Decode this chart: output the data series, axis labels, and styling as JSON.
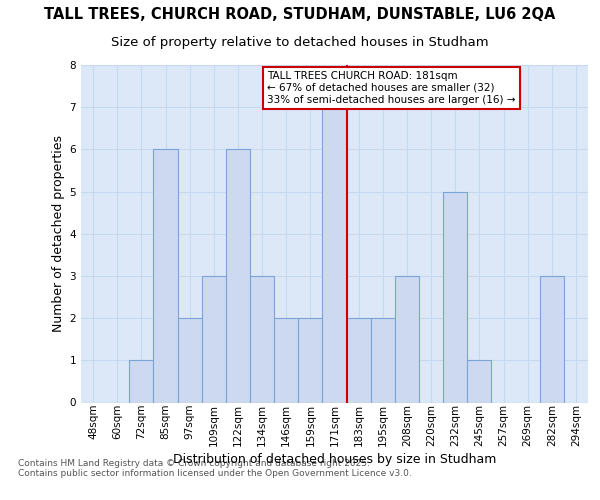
{
  "title_line1": "TALL TREES, CHURCH ROAD, STUDHAM, DUNSTABLE, LU6 2QA",
  "title_line2": "Size of property relative to detached houses in Studham",
  "xlabel": "Distribution of detached houses by size in Studham",
  "ylabel": "Number of detached properties",
  "categories": [
    "48sqm",
    "60sqm",
    "72sqm",
    "85sqm",
    "97sqm",
    "109sqm",
    "122sqm",
    "134sqm",
    "146sqm",
    "159sqm",
    "171sqm",
    "183sqm",
    "195sqm",
    "208sqm",
    "220sqm",
    "232sqm",
    "245sqm",
    "257sqm",
    "269sqm",
    "282sqm",
    "294sqm"
  ],
  "values": [
    0,
    0,
    1,
    6,
    2,
    3,
    6,
    3,
    2,
    2,
    7,
    2,
    2,
    3,
    0,
    5,
    1,
    0,
    0,
    3,
    0
  ],
  "bar_color": "#ccd9f0",
  "bar_edge_color": "#7ba3d8",
  "vline_between": [
    10,
    11
  ],
  "vline_color": "#cc0000",
  "annotation_text": "TALL TREES CHURCH ROAD: 181sqm\n← 67% of detached houses are smaller (32)\n33% of semi-detached houses are larger (16) →",
  "annotation_box_facecolor": "#ffffff",
  "annotation_box_edgecolor": "#cc0000",
  "ylim": [
    0,
    8
  ],
  "yticks": [
    0,
    1,
    2,
    3,
    4,
    5,
    6,
    7,
    8
  ],
  "xlim_left": -0.5,
  "xlim_right": 20.5,
  "background_color": "#dce8f8",
  "grid_color": "#c5d8f0",
  "footer_text": "Contains HM Land Registry data © Crown copyright and database right 2025.\nContains public sector information licensed under the Open Government Licence v3.0.",
  "title_fontsize": 10.5,
  "subtitle_fontsize": 9.5,
  "axis_label_fontsize": 9,
  "tick_fontsize": 7.5,
  "footer_fontsize": 6.5,
  "annotation_fontsize": 7.5
}
